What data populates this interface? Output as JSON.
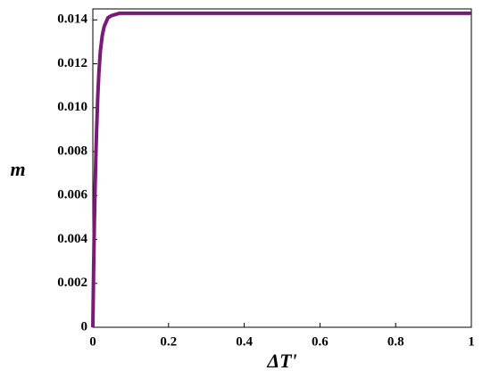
{
  "chart_data": {
    "type": "line",
    "x_label": "ΔT'",
    "y_label": "m",
    "x": [
      0,
      0.002,
      0.004,
      0.006,
      0.008,
      0.01,
      0.013,
      0.016,
      0.02,
      0.025,
      0.03,
      0.04,
      0.05,
      0.07,
      0.1,
      0.2,
      0.4,
      0.6,
      0.8,
      1
    ],
    "series": [
      {
        "color": "#7a1a78",
        "values": [
          0,
          0.0026,
          0.0047,
          0.0064,
          0.0078,
          0.009,
          0.0105,
          0.0116,
          0.0126,
          0.0133,
          0.0137,
          0.0141,
          0.0142,
          0.0143,
          0.0143,
          0.0143,
          0.0143,
          0.0143,
          0.0143,
          0.0143
        ]
      }
    ],
    "xlim": [
      0,
      1
    ],
    "ylim": [
      0,
      0.0145
    ],
    "xticks": [
      0,
      0.2,
      0.4,
      0.6,
      0.8,
      1
    ],
    "yticks": [
      0,
      0.002,
      0.004,
      0.006,
      0.008,
      {
        "value": 0.01,
        "label": "0.010"
      },
      0.012,
      0.014
    ]
  }
}
